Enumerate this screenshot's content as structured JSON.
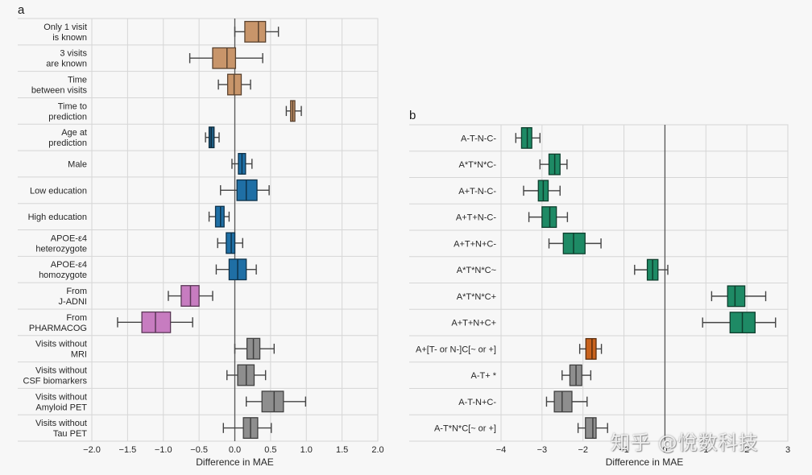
{
  "chart_data": [
    {
      "type": "boxplot",
      "panel_label": "a",
      "orientation": "horizontal",
      "xlabel": "Difference in MAE",
      "ylabel": "",
      "xlim": [
        -2.0,
        2.0
      ],
      "xticks": [
        -2.0,
        -1.5,
        -1.0,
        -0.5,
        0.0,
        0.5,
        1.0,
        1.5,
        2.0
      ],
      "xtick_labels": [
        "−2.0",
        "−1.5",
        "−1.0",
        "−0.5",
        "0.0",
        "0.5",
        "1.0",
        "1.5",
        "2.0"
      ],
      "reference_line": 0.0,
      "grid": true,
      "categories": [
        {
          "label": [
            "Only 1 visit",
            "is known"
          ],
          "color": "#c8956a",
          "whisker_low": 0.0,
          "q1": 0.14,
          "median": 0.33,
          "q3": 0.43,
          "whisker_high": 0.61
        },
        {
          "label": [
            "3 visits",
            "are known"
          ],
          "color": "#c8956a",
          "whisker_low": -0.63,
          "q1": -0.31,
          "median": -0.11,
          "q3": 0.01,
          "whisker_high": 0.39
        },
        {
          "label": [
            "Time",
            "between visits"
          ],
          "color": "#c8956a",
          "whisker_low": -0.23,
          "q1": -0.1,
          "median": -0.01,
          "q3": 0.09,
          "whisker_high": 0.22
        },
        {
          "label": [
            "Time to",
            "prediction"
          ],
          "color": "#c8956a",
          "whisker_low": 0.72,
          "q1": 0.78,
          "median": 0.81,
          "q3": 0.84,
          "whisker_high": 0.93
        },
        {
          "label": [
            "Age at",
            "prediction"
          ],
          "color": "#1f5f86",
          "whisker_low": -0.41,
          "q1": -0.36,
          "median": -0.33,
          "q3": -0.29,
          "whisker_high": -0.22
        },
        {
          "label": [
            "Male"
          ],
          "color": "#1f6fa5",
          "whisker_low": -0.04,
          "q1": 0.05,
          "median": 0.1,
          "q3": 0.15,
          "whisker_high": 0.24
        },
        {
          "label": [
            "Low education"
          ],
          "color": "#1f6fa5",
          "whisker_low": -0.2,
          "q1": 0.03,
          "median": 0.16,
          "q3": 0.31,
          "whisker_high": 0.48
        },
        {
          "label": [
            "High education"
          ],
          "color": "#1f6fa5",
          "whisker_low": -0.36,
          "q1": -0.27,
          "median": -0.2,
          "q3": -0.15,
          "whisker_high": -0.08
        },
        {
          "label": [
            "APOE-ε4",
            "heterozygote"
          ],
          "color": "#1f6fa5",
          "whisker_low": -0.24,
          "q1": -0.12,
          "median": -0.05,
          "q3": 0.0,
          "whisker_high": 0.11
        },
        {
          "label": [
            "APOE-ε4",
            "homozygote"
          ],
          "color": "#1f6fa5",
          "whisker_low": -0.26,
          "q1": -0.08,
          "median": 0.04,
          "q3": 0.16,
          "whisker_high": 0.3
        },
        {
          "label": [
            "From",
            "J-ADNI"
          ],
          "color": "#c77cc0",
          "whisker_low": -0.93,
          "q1": -0.75,
          "median": -0.62,
          "q3": -0.5,
          "whisker_high": -0.31
        },
        {
          "label": [
            "From",
            "PHARMACOG"
          ],
          "color": "#c77cc0",
          "whisker_low": -1.64,
          "q1": -1.3,
          "median": -1.11,
          "q3": -0.9,
          "whisker_high": -0.59
        },
        {
          "label": [
            "Visits without",
            "MRI"
          ],
          "color": "#8e8e8e",
          "whisker_low": 0.0,
          "q1": 0.17,
          "median": 0.26,
          "q3": 0.35,
          "whisker_high": 0.55
        },
        {
          "label": [
            "Visits without",
            "CSF biomarkers"
          ],
          "color": "#8e8e8e",
          "whisker_low": -0.11,
          "q1": 0.04,
          "median": 0.16,
          "q3": 0.27,
          "whisker_high": 0.43
        },
        {
          "label": [
            "Visits without",
            "Amyloid PET"
          ],
          "color": "#8e8e8e",
          "whisker_low": 0.16,
          "q1": 0.38,
          "median": 0.55,
          "q3": 0.68,
          "whisker_high": 0.99
        },
        {
          "label": [
            "Visits without",
            "Tau PET"
          ],
          "color": "#8e8e8e",
          "whisker_low": -0.16,
          "q1": 0.12,
          "median": 0.22,
          "q3": 0.32,
          "whisker_high": 0.51
        }
      ]
    },
    {
      "type": "boxplot",
      "panel_label": "b",
      "orientation": "horizontal",
      "xlabel": "Difference in MAE",
      "ylabel": "",
      "xlim": [
        -4,
        3
      ],
      "xticks": [
        -4,
        -3,
        -2,
        -1,
        0,
        1,
        2,
        3
      ],
      "xtick_labels": [
        "−4",
        "−3",
        "−2",
        "−1",
        "0",
        "1",
        "2",
        "3"
      ],
      "reference_line": 0,
      "grid": true,
      "categories": [
        {
          "label": [
            "A-T-N-C-"
          ],
          "color": "#1e8a65",
          "whisker_low": -3.64,
          "q1": -3.5,
          "median": -3.36,
          "q3": -3.25,
          "whisker_high": -3.05
        },
        {
          "label": [
            "A*T*N*C-"
          ],
          "color": "#1e8a65",
          "whisker_low": -3.05,
          "q1": -2.83,
          "median": -2.69,
          "q3": -2.56,
          "whisker_high": -2.39
        },
        {
          "label": [
            "A+T-N-C-"
          ],
          "color": "#1e8a65",
          "whisker_low": -3.45,
          "q1": -3.09,
          "median": -2.97,
          "q3": -2.85,
          "whisker_high": -2.56
        },
        {
          "label": [
            "A+T+N-C-"
          ],
          "color": "#1e8a65",
          "whisker_low": -3.32,
          "q1": -3.0,
          "median": -2.81,
          "q3": -2.65,
          "whisker_high": -2.38
        },
        {
          "label": [
            "A+T+N+C-"
          ],
          "color": "#1e8a65",
          "whisker_low": -2.83,
          "q1": -2.48,
          "median": -2.23,
          "q3": -1.95,
          "whisker_high": -1.56
        },
        {
          "label": [
            "A*T*N*C~"
          ],
          "color": "#1e8a65",
          "whisker_low": -0.74,
          "q1": -0.43,
          "median": -0.3,
          "q3": -0.17,
          "whisker_high": 0.07
        },
        {
          "label": [
            "A*T*N*C+"
          ],
          "color": "#1e8a65",
          "whisker_low": 1.14,
          "q1": 1.53,
          "median": 1.71,
          "q3": 1.95,
          "whisker_high": 2.46
        },
        {
          "label": [
            "A+T+N+C+"
          ],
          "color": "#1e8a65",
          "whisker_low": 0.92,
          "q1": 1.59,
          "median": 1.89,
          "q3": 2.2,
          "whisker_high": 2.7
        },
        {
          "label": [
            "A+[T- or N-]C[~ or +]"
          ],
          "color": "#c8621d",
          "whisker_low": -2.08,
          "q1": -1.93,
          "median": -1.78,
          "q3": -1.68,
          "whisker_high": -1.55
        },
        {
          "label": [
            "A-T+ *"
          ],
          "color": "#8e8e8e",
          "whisker_low": -2.51,
          "q1": -2.32,
          "median": -2.17,
          "q3": -2.03,
          "whisker_high": -1.81
        },
        {
          "label": [
            "A-T-N+C-"
          ],
          "color": "#8e8e8e",
          "whisker_low": -2.89,
          "q1": -2.7,
          "median": -2.51,
          "q3": -2.27,
          "whisker_high": -1.9
        },
        {
          "label": [
            "A-T*N*C[~ or +]"
          ],
          "color": "#8e8e8e",
          "whisker_low": -2.12,
          "q1": -1.94,
          "median": -1.76,
          "q3": -1.68,
          "whisker_high": -1.4
        }
      ]
    }
  ],
  "watermark": "知乎 @悅数科技"
}
